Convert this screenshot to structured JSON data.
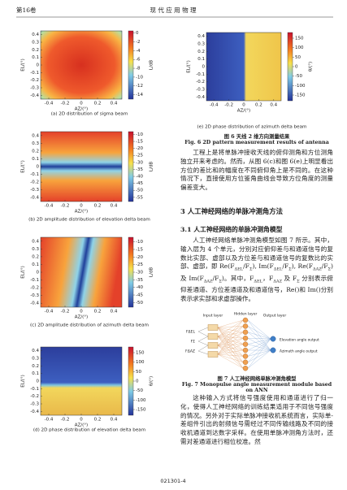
{
  "header": {
    "volume": "第16卷",
    "journal": "现 代 应 用 物 理"
  },
  "figures": [
    {
      "xlabel": "AZ/(°)",
      "ylabel": "EL/(°)",
      "xlim": [
        -0.5,
        0.5
      ],
      "ylim": [
        -0.45,
        0.45
      ],
      "xticks": [
        -0.4,
        -0.2,
        0,
        0.2,
        0.4
      ],
      "yticks": [
        0.4,
        0.3,
        0.2,
        0.1,
        0,
        -0.1,
        -0.2,
        -0.3,
        -0.4
      ],
      "clim": [
        -15,
        0.5
      ],
      "cticks": [
        0,
        -2,
        -4,
        -6,
        -8,
        -10,
        -12,
        -14
      ],
      "clabel": "L/dB",
      "caption": "(a) 2D distribution of sigma beam"
    },
    {
      "xlabel": "AZ/(°)",
      "ylabel": "EL/(°)",
      "xlim": [
        -0.5,
        0.5
      ],
      "ylim": [
        -0.45,
        0.45
      ],
      "xticks": [
        -0.4,
        -0.2,
        0,
        0.2,
        0.4
      ],
      "yticks": [
        0.4,
        0.3,
        0.2,
        0.1,
        0,
        -0.1,
        -0.2,
        -0.3,
        -0.4
      ],
      "clim": [
        -58,
        -8
      ],
      "cticks": [
        -10,
        -15,
        -20,
        -25,
        -30,
        -35,
        -40,
        -45,
        -50,
        -55
      ],
      "clabel": "L/dB",
      "caption": "(b) 2D amplitude distribution of elevation delta beam"
    },
    {
      "xlabel": "AZ/(°)",
      "ylabel": "EL/(°)",
      "xlim": [
        -0.5,
        0.5
      ],
      "ylim": [
        -0.45,
        0.45
      ],
      "xticks": [
        -0.4,
        -0.2,
        0,
        0.2,
        0.4
      ],
      "yticks": [
        0.4,
        0.3,
        0.2,
        0.1,
        0,
        -0.1,
        -0.2,
        -0.3,
        -0.4
      ],
      "clim": [
        -53,
        -7
      ],
      "cticks": [
        -10,
        -15,
        -20,
        -25,
        -30,
        -35,
        -40,
        -45,
        -50
      ],
      "clabel": "L/dB",
      "caption": "(c) 2D amplitude distribution of azimuth delta beam"
    },
    {
      "xlabel": "AZ/(°)",
      "ylabel": "EL/(°)",
      "xlim": [
        -0.5,
        0.5
      ],
      "ylim": [
        -0.45,
        0.45
      ],
      "xticks": [
        -0.4,
        -0.2,
        0,
        0.2,
        0.4
      ],
      "yticks": [
        0.4,
        0.3,
        0.2,
        0.1,
        0,
        -0.1,
        -0.2,
        -0.3,
        -0.4
      ],
      "clim": [
        -180,
        180
      ],
      "cticks": [
        150,
        100,
        50,
        0,
        -50,
        -100,
        -150
      ],
      "clabel": "θ/(°)",
      "caption": "(d) 2D phase distribution of elevation delta beam"
    },
    {
      "xlabel": "AZ/(°)",
      "ylabel": "EL/(°)",
      "xlim": [
        -0.5,
        0.5
      ],
      "ylim": [
        -0.45,
        0.45
      ],
      "xticks": [
        -0.4,
        -0.2,
        0,
        0.2,
        0.4
      ],
      "yticks": [
        0.4,
        0.3,
        0.2,
        0.1,
        0,
        -0.1,
        -0.2,
        -0.3,
        -0.4
      ],
      "clim": [
        -180,
        180
      ],
      "cticks": [
        150,
        100,
        50,
        0,
        -50,
        -100,
        -150
      ],
      "clabel": "θ/(°)",
      "caption": "(e) 2D phase distribution of azimuth delta beam"
    }
  ],
  "fig6": {
    "cn": "图 6  天线 2 维方向测量结果",
    "en": "Fig. 6  2D pattern measurement results of antenna"
  },
  "paragraph1": [
    "工程上是将单脉冲接收天线的俯仰测角和方位测角独立开来考虑的。然而，从图 6(c)和图 6(e)上明显看出方位的差比和的幅度在不同俯仰角上是不同的。在这种情况下，直接使用方位鉴角曲线会导致方位角度的测量偏差变大。"
  ],
  "section": "3  人工神经网络的单脉冲测角方法",
  "subsection": "3.1  人工神经网络的单脉冲测角模型",
  "paragraph2": [
    "人工神经网络单脉冲测角模型如图 7 所示。其中，输入层为 4 个单元，分别对应俯仰差与和通道信号的复数比实部、虚部以及方位差与和通道信号的复数比的实部、虚部，即 Re(F",
    "ΔEL",
    "/F",
    "Σ",
    "), Im(F",
    "ΔEL",
    "/F",
    "Σ",
    "), Re(F",
    "ΔAZ",
    "/F",
    "Σ",
    ")及 Im(F",
    "ΔAZ",
    "/F",
    "Σ",
    ")。其中，F",
    "ΔEL",
    "，F",
    "ΔAZ",
    " 及 F",
    "Σ",
    " 分别表示俯仰差通道、方位差通道及和通道信号，Re()和 Im()分别表示求实部和求虚部操作。"
  ],
  "diagram": {
    "input_layer": "Input layer",
    "hidden_layer": "Hidden layer",
    "output_layer": "Output layer",
    "signals": [
      "FΔEL",
      "FΣ",
      "FΔAZ"
    ],
    "outputs": [
      "Elevation angle output",
      "Azimuth angle output"
    ]
  },
  "fig7": {
    "cn": "图 7  人工神经网络单脉冲测角模型",
    "en": "Fig. 7  Monopulse angle measurement module based on ANN"
  },
  "paragraph3": [
    "这种输入方式将信号强度使用和通道进行了归一化，使得人工神经网络的训练结果适用于不同信号强度的情况。另外对于实际单脉冲接收机系统而言，实际单-差组件引出的射频信号需经过不同传输线路及不同的接收机通道到达数字采样。在使用单脉冲测角方法时，还需对差通道进行相位校准。然"
  ],
  "footer": "021301-4"
}
